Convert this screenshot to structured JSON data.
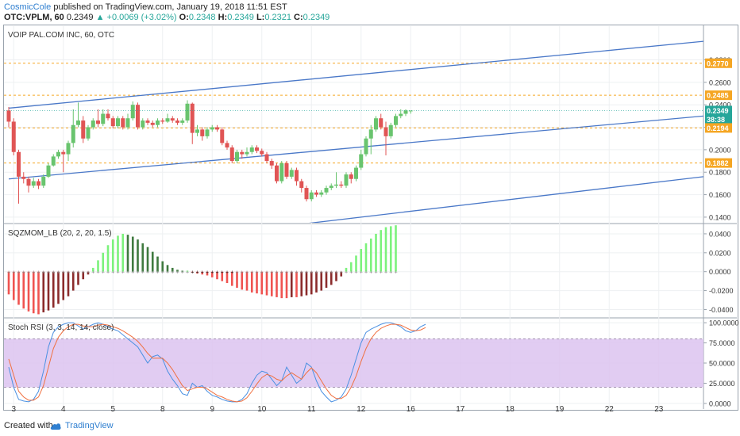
{
  "header": {
    "author": "CosmicCole",
    "published_text": "published on TradingView.com, January 19, 2018 11:51 EST",
    "symbol": "OTC:VPLM, 60",
    "last": "0.2349",
    "change": "▲ +0.0069 (+3.02%)",
    "o_label": "O:",
    "o_value": "0.2348",
    "h_label": "H:",
    "h_value": "0.2349",
    "l_label": "L:",
    "l_value": "0.2321",
    "c_label": "C:",
    "c_value": "0.2349"
  },
  "footer": {
    "created_with": "Created with",
    "brand": "TradingView"
  },
  "colors": {
    "bull": "#69c46e",
    "bear": "#e05555",
    "channel": "#4a78c8",
    "level": "#f5a623",
    "mom_bright_green": "#7cf27c",
    "mom_dark_green": "#3f7a3f",
    "mom_bright_red": "#ef5350",
    "mom_dark_red": "#8b2b2b",
    "rsi_k": "#4a90e2",
    "rsi_d": "#f07040",
    "rsi_band": "#dcc3f0"
  },
  "chart_data": [
    {
      "type": "candlestick",
      "title": "VOIP PAL.COM INC, 60, OTC",
      "ylim": [
        0.135,
        0.31
      ],
      "y_ticks": [
        "0.1400",
        "0.1600",
        "0.1800",
        "0.2000",
        "0.2200",
        "0.2400",
        "0.2600",
        "0.2800"
      ],
      "price_labels": [
        {
          "value": 0.277,
          "text": "0.2770",
          "kind": "level"
        },
        {
          "value": 0.2485,
          "text": "0.2485",
          "kind": "level"
        },
        {
          "value": 0.2349,
          "text": "0.2349",
          "kind": "last"
        },
        {
          "value": 0.227,
          "text": "38:38",
          "kind": "timer"
        },
        {
          "value": 0.2194,
          "text": "0.2194",
          "kind": "level"
        },
        {
          "value": 0.1882,
          "text": "0.1882",
          "kind": "level"
        }
      ],
      "horizontal_levels": [
        0.277,
        0.2485,
        0.2194,
        0.1882
      ],
      "channel_lines": [
        {
          "from": [
            0,
            0.237
          ],
          "to": [
            140,
            0.2965
          ]
        },
        {
          "from": [
            0,
            0.174
          ],
          "to": [
            140,
            0.23
          ]
        },
        {
          "from": [
            0,
            0.103
          ],
          "to": [
            140,
            0.176
          ]
        }
      ],
      "x_ticks": [
        {
          "i": 1,
          "label": "3"
        },
        {
          "i": 11,
          "label": "4"
        },
        {
          "i": 21,
          "label": "5"
        },
        {
          "i": 31,
          "label": "8"
        },
        {
          "i": 41,
          "label": "9"
        },
        {
          "i": 51,
          "label": "10"
        },
        {
          "i": 61,
          "label": "11"
        },
        {
          "i": 71,
          "label": "12"
        },
        {
          "i": 81,
          "label": "16"
        },
        {
          "i": 91,
          "label": "17"
        },
        {
          "i": 101,
          "label": "18"
        },
        {
          "i": 111,
          "label": "19"
        },
        {
          "i": 121,
          "label": "22"
        },
        {
          "i": 131,
          "label": "23"
        }
      ],
      "candles": [
        [
          0.235,
          0.225,
          0.238,
          0.22
        ],
        [
          0.225,
          0.198,
          0.228,
          0.195
        ],
        [
          0.198,
          0.176,
          0.2,
          0.152
        ],
        [
          0.176,
          0.174,
          0.18,
          0.17
        ],
        [
          0.174,
          0.168,
          0.176,
          0.162
        ],
        [
          0.168,
          0.172,
          0.175,
          0.166
        ],
        [
          0.172,
          0.168,
          0.174,
          0.165
        ],
        [
          0.168,
          0.176,
          0.178,
          0.166
        ],
        [
          0.176,
          0.186,
          0.188,
          0.175
        ],
        [
          0.186,
          0.194,
          0.196,
          0.185
        ],
        [
          0.194,
          0.198,
          0.2,
          0.192
        ],
        [
          0.198,
          0.196,
          0.2,
          0.18
        ],
        [
          0.196,
          0.206,
          0.208,
          0.19
        ],
        [
          0.206,
          0.222,
          0.236,
          0.202
        ],
        [
          0.222,
          0.226,
          0.242,
          0.22
        ],
        [
          0.226,
          0.21,
          0.23,
          0.206
        ],
        [
          0.21,
          0.22,
          0.222,
          0.208
        ],
        [
          0.22,
          0.226,
          0.228,
          0.218
        ],
        [
          0.226,
          0.223,
          0.236,
          0.22
        ],
        [
          0.223,
          0.232,
          0.236,
          0.221
        ],
        [
          0.232,
          0.228,
          0.236,
          0.226
        ],
        [
          0.228,
          0.221,
          0.23,
          0.219
        ],
        [
          0.221,
          0.228,
          0.23,
          0.219
        ],
        [
          0.228,
          0.22,
          0.23,
          0.218
        ],
        [
          0.22,
          0.228,
          0.232,
          0.218
        ],
        [
          0.228,
          0.24,
          0.243,
          0.226
        ],
        [
          0.24,
          0.22,
          0.242,
          0.218
        ],
        [
          0.22,
          0.226,
          0.228,
          0.218
        ],
        [
          0.226,
          0.224,
          0.228,
          0.222
        ],
        [
          0.224,
          0.222,
          0.226,
          0.22
        ],
        [
          0.222,
          0.226,
          0.228,
          0.22
        ],
        [
          0.226,
          0.225,
          0.228,
          0.223
        ],
        [
          0.225,
          0.228,
          0.232,
          0.224
        ],
        [
          0.228,
          0.226,
          0.23,
          0.224
        ],
        [
          0.226,
          0.224,
          0.228,
          0.222
        ],
        [
          0.224,
          0.226,
          0.228,
          0.222
        ],
        [
          0.226,
          0.241,
          0.244,
          0.224
        ],
        [
          0.241,
          0.215,
          0.242,
          0.205
        ],
        [
          0.215,
          0.218,
          0.222,
          0.212
        ],
        [
          0.218,
          0.212,
          0.22,
          0.208
        ],
        [
          0.212,
          0.218,
          0.22,
          0.21
        ],
        [
          0.218,
          0.22,
          0.222,
          0.216
        ],
        [
          0.22,
          0.218,
          0.222,
          0.216
        ],
        [
          0.218,
          0.206,
          0.22,
          0.204
        ],
        [
          0.206,
          0.202,
          0.208,
          0.2
        ],
        [
          0.202,
          0.19,
          0.204,
          0.188
        ],
        [
          0.19,
          0.198,
          0.2,
          0.188
        ],
        [
          0.198,
          0.196,
          0.2,
          0.192
        ],
        [
          0.196,
          0.198,
          0.202,
          0.194
        ],
        [
          0.198,
          0.202,
          0.204,
          0.196
        ],
        [
          0.202,
          0.199,
          0.204,
          0.197
        ],
        [
          0.199,
          0.196,
          0.201,
          0.194
        ],
        [
          0.196,
          0.19,
          0.198,
          0.188
        ],
        [
          0.19,
          0.186,
          0.192,
          0.183
        ],
        [
          0.186,
          0.172,
          0.188,
          0.17
        ],
        [
          0.172,
          0.188,
          0.19,
          0.17
        ],
        [
          0.188,
          0.176,
          0.19,
          0.174
        ],
        [
          0.176,
          0.182,
          0.184,
          0.174
        ],
        [
          0.182,
          0.172,
          0.184,
          0.168
        ],
        [
          0.172,
          0.166,
          0.174,
          0.162
        ],
        [
          0.166,
          0.156,
          0.168,
          0.154
        ],
        [
          0.156,
          0.162,
          0.164,
          0.154
        ],
        [
          0.162,
          0.16,
          0.164,
          0.158
        ],
        [
          0.16,
          0.162,
          0.164,
          0.158
        ],
        [
          0.162,
          0.166,
          0.168,
          0.16
        ],
        [
          0.166,
          0.168,
          0.17,
          0.164
        ],
        [
          0.168,
          0.169,
          0.18,
          0.166
        ],
        [
          0.169,
          0.168,
          0.172,
          0.166
        ],
        [
          0.168,
          0.178,
          0.18,
          0.166
        ],
        [
          0.178,
          0.174,
          0.18,
          0.17
        ],
        [
          0.174,
          0.184,
          0.186,
          0.172
        ],
        [
          0.184,
          0.196,
          0.2,
          0.182
        ],
        [
          0.196,
          0.21,
          0.212,
          0.194
        ],
        [
          0.21,
          0.218,
          0.222,
          0.196
        ],
        [
          0.218,
          0.228,
          0.23,
          0.216
        ],
        [
          0.228,
          0.22,
          0.232,
          0.218
        ],
        [
          0.22,
          0.212,
          0.225,
          0.195
        ],
        [
          0.212,
          0.222,
          0.224,
          0.21
        ],
        [
          0.222,
          0.23,
          0.232,
          0.22
        ],
        [
          0.23,
          0.232,
          0.236,
          0.228
        ],
        [
          0.232,
          0.235,
          0.236,
          0.23
        ],
        [
          0.2348,
          0.2349,
          0.2349,
          0.2321
        ]
      ],
      "candle_index_map": [
        0,
        1,
        2,
        3,
        4,
        5,
        6,
        7,
        8,
        9,
        10,
        11,
        12,
        13,
        14,
        15,
        16,
        17,
        18,
        19,
        20,
        21,
        22,
        23,
        24,
        25,
        26,
        27,
        28,
        29,
        30,
        31,
        32,
        33,
        34,
        35,
        36,
        37,
        38,
        39,
        40,
        41,
        42,
        43,
        44,
        45,
        46,
        47,
        48,
        49,
        50,
        51,
        52,
        53,
        54,
        55,
        56,
        57,
        58,
        59,
        60,
        61,
        62,
        63,
        64,
        65,
        66,
        67,
        68,
        69,
        70,
        71,
        72,
        73,
        74,
        75,
        76,
        77,
        78,
        79,
        80,
        81
      ]
    },
    {
      "type": "bar",
      "title": "SQZMOM_LB (20, 2, 20, 1.5)",
      "ylim": [
        -0.048,
        0.05
      ],
      "y_ticks": [
        "-0.0400",
        "-0.0200",
        "0.0000",
        "0.0200",
        "0.0400"
      ],
      "values": [
        -0.024,
        -0.03,
        -0.035,
        -0.039,
        -0.042,
        -0.044,
        -0.045,
        -0.043,
        -0.041,
        -0.038,
        -0.034,
        -0.03,
        -0.026,
        -0.02,
        -0.014,
        -0.008,
        -0.003,
        0.004,
        0.012,
        0.02,
        0.028,
        0.034,
        0.038,
        0.04,
        0.039,
        0.037,
        0.034,
        0.03,
        0.026,
        0.021,
        0.016,
        0.011,
        0.007,
        0.004,
        0.002,
        0.001,
        0.001,
        -0.001,
        -0.002,
        -0.003,
        -0.004,
        -0.006,
        -0.008,
        -0.01,
        -0.012,
        -0.015,
        -0.017,
        -0.019,
        -0.02,
        -0.022,
        -0.023,
        -0.024,
        -0.025,
        -0.026,
        -0.027,
        -0.028,
        -0.028,
        -0.027,
        -0.027,
        -0.026,
        -0.025,
        -0.024,
        -0.022,
        -0.02,
        -0.017,
        -0.014,
        -0.01,
        -0.005,
        0.004,
        0.01,
        0.017,
        0.024,
        0.03,
        0.035,
        0.04,
        0.044,
        0.047,
        0.048,
        0.049
      ],
      "squeeze_dots": "on"
    },
    {
      "type": "line",
      "title": "Stoch RSI (3, 3, 14, 14, close)",
      "ylim": [
        -5,
        105
      ],
      "y_ticks": [
        "0.0000",
        "25.0000",
        "50.0000",
        "75.0000",
        "100.0000"
      ],
      "band": [
        20,
        80
      ],
      "series": [
        {
          "values": [
            45,
            20,
            5,
            3,
            2,
            5,
            15,
            40,
            70,
            88,
            95,
            98,
            100,
            100,
            96,
            92,
            95,
            98,
            100,
            98,
            95,
            92,
            90,
            85,
            80,
            75,
            70,
            60,
            50,
            58,
            60,
            55,
            40,
            30,
            22,
            12,
            10,
            25,
            20,
            22,
            15,
            10,
            8,
            5,
            3,
            2,
            2,
            5,
            12,
            25,
            35,
            40,
            38,
            30,
            22,
            28,
            45,
            35,
            25,
            30,
            50,
            45,
            28,
            15,
            8,
            2,
            4,
            8,
            18,
            35,
            55,
            75,
            88,
            92,
            95,
            98,
            100,
            100,
            98,
            95,
            90,
            88,
            90,
            95,
            98
          ]
        },
        {
          "values": [
            55,
            35,
            15,
            8,
            4,
            4,
            8,
            22,
            45,
            68,
            82,
            90,
            95,
            98,
            98,
            96,
            95,
            95,
            97,
            98,
            97,
            95,
            93,
            90,
            86,
            82,
            77,
            70,
            62,
            56,
            56,
            56,
            50,
            42,
            32,
            22,
            16,
            18,
            20,
            20,
            18,
            14,
            10,
            8,
            5,
            3,
            2,
            3,
            7,
            15,
            24,
            32,
            36,
            34,
            30,
            28,
            34,
            38,
            34,
            30,
            38,
            44,
            38,
            28,
            18,
            10,
            6,
            6,
            10,
            20,
            34,
            52,
            68,
            80,
            88,
            93,
            96,
            98,
            98,
            97,
            94,
            91,
            90,
            91,
            94
          ]
        }
      ]
    }
  ]
}
